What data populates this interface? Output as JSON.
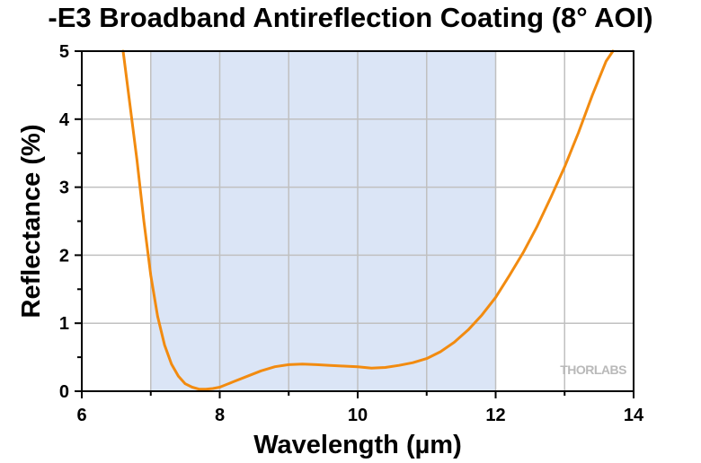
{
  "chart_data": {
    "type": "line",
    "title": "-E3 Broadband Antireflection Coating (8° AOI)",
    "xlabel": "Wavelength (µm)",
    "ylabel": "Reflectance (%)",
    "xlim": [
      6,
      14
    ],
    "ylim": [
      0,
      5
    ],
    "x_ticks": [
      "6",
      "8",
      "10",
      "12",
      "14"
    ],
    "y_ticks": [
      "0",
      "1",
      "2",
      "3",
      "4",
      "5"
    ],
    "grid": true,
    "shaded_band": [
      7,
      12
    ],
    "colors": {
      "line": "#f28b10",
      "band": "#dbe5f6",
      "grid": "#c0c0c0"
    },
    "watermark": "THORLABS",
    "series": [
      {
        "x": [
          6.6,
          6.7,
          6.8,
          6.9,
          7.0,
          7.1,
          7.2,
          7.3,
          7.4,
          7.5,
          7.6,
          7.7,
          7.8,
          7.9,
          8.0,
          8.2,
          8.4,
          8.6,
          8.8,
          9.0,
          9.2,
          9.4,
          9.6,
          9.8,
          10.0,
          10.2,
          10.4,
          10.6,
          10.8,
          11.0,
          11.2,
          11.4,
          11.6,
          11.8,
          12.0,
          12.2,
          12.4,
          12.6,
          12.8,
          13.0,
          13.2,
          13.4,
          13.6,
          13.7
        ],
        "values": [
          5.0,
          4.2,
          3.4,
          2.5,
          1.7,
          1.1,
          0.68,
          0.4,
          0.22,
          0.11,
          0.06,
          0.03,
          0.03,
          0.04,
          0.06,
          0.14,
          0.22,
          0.3,
          0.36,
          0.39,
          0.4,
          0.39,
          0.38,
          0.37,
          0.36,
          0.34,
          0.35,
          0.38,
          0.42,
          0.48,
          0.58,
          0.72,
          0.9,
          1.12,
          1.38,
          1.7,
          2.04,
          2.42,
          2.85,
          3.3,
          3.8,
          4.35,
          4.85,
          5.0
        ]
      }
    ]
  }
}
